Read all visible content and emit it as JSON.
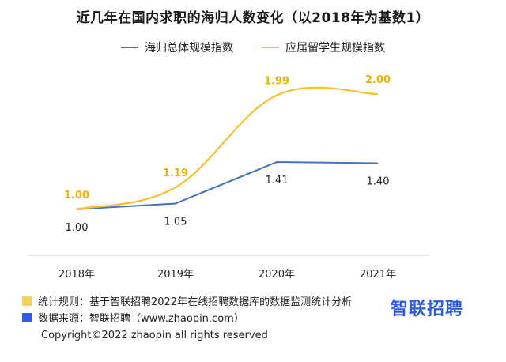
{
  "title": "近几年在国内求职的海归人数变化（以2018年为基数1）",
  "chart_data": {
    "type": "line",
    "categories": [
      "2018年",
      "2019年",
      "2020年",
      "2021年"
    ],
    "series": [
      {
        "name": "海归总体规模指数",
        "color": "#4472c4",
        "values": [
          1.0,
          1.05,
          1.41,
          1.4
        ],
        "labels": [
          "1.00",
          "1.05",
          "1.41",
          "1.40"
        ]
      },
      {
        "name": "应届留学生规模指数",
        "color": "#f5c02a",
        "values": [
          1.0,
          1.19,
          1.99,
          2.0
        ],
        "labels": [
          "1.00",
          "1.19",
          "1.99",
          "2.00"
        ]
      }
    ],
    "ylim": [
      0.6,
      2.2
    ],
    "grid": false,
    "legend_position": "top"
  },
  "notes": [
    {
      "text": "统计规则：基于智联招聘2022年在线招聘数据库的数据监测统计分析",
      "color": "#f5d15a"
    },
    {
      "text": "数据来源：智联招聘（www.zhaopin.com）",
      "color": "#2e5ce6"
    }
  ],
  "brand": "智联招聘",
  "copyright": "Copyright©2022 zhaopin all rights reserved"
}
